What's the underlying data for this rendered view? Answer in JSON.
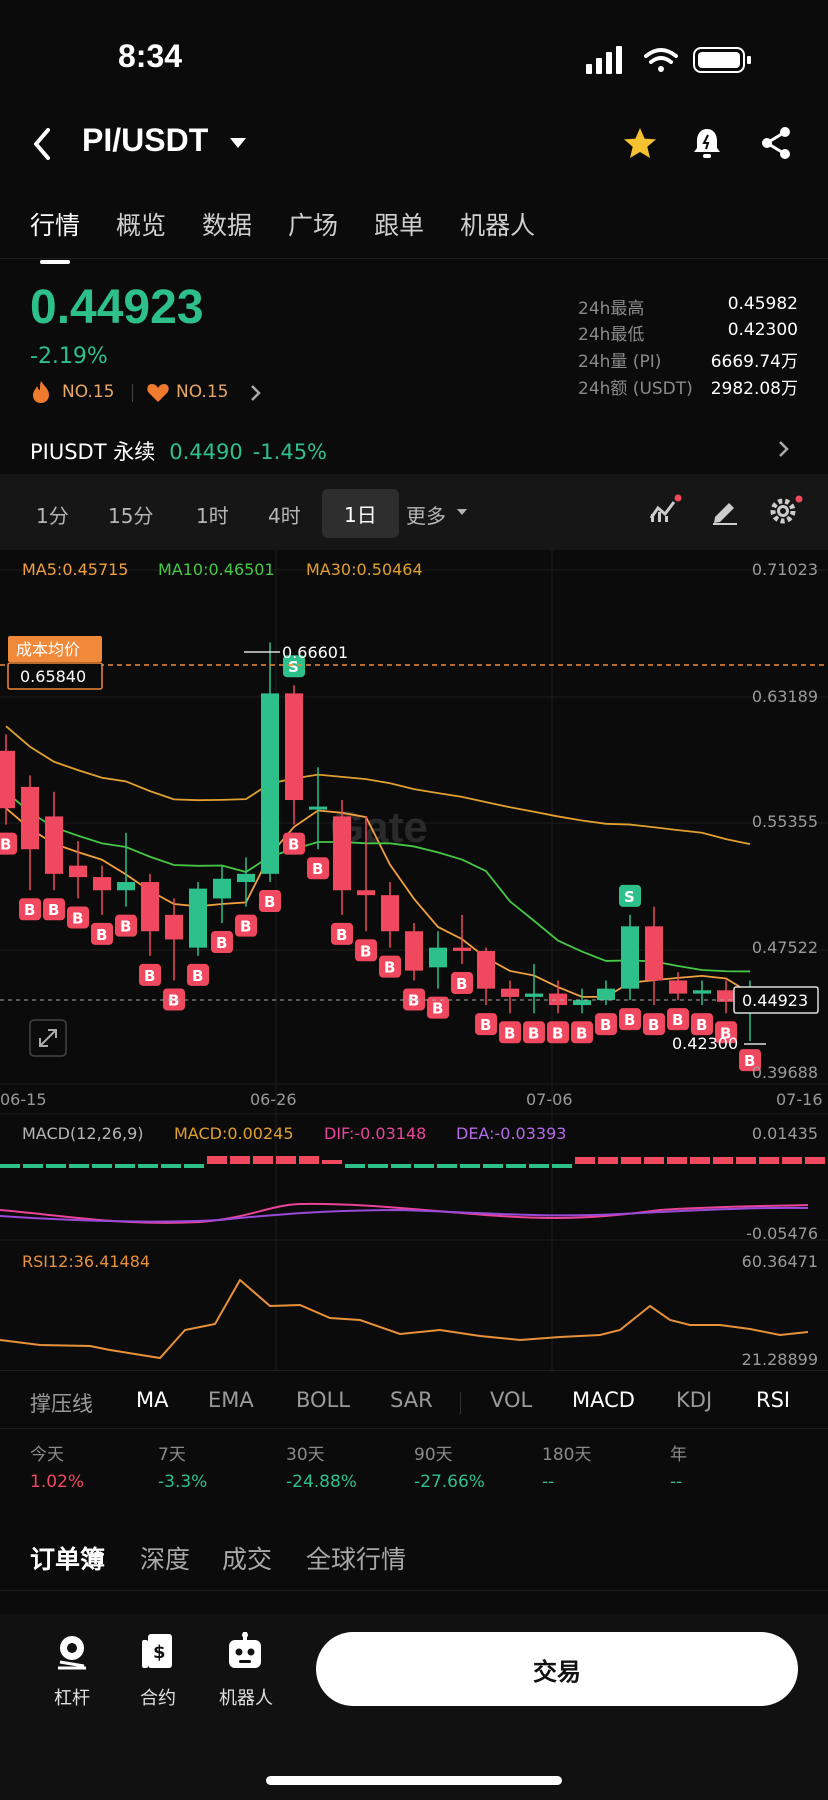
{
  "status": {
    "time": "8:34"
  },
  "header": {
    "pair": "PI/USDT"
  },
  "tabs": [
    "行情",
    "概览",
    "数据",
    "广场",
    "跟单",
    "机器人"
  ],
  "price": {
    "last": "0.44923",
    "change": "-2.19%",
    "rank1": "NO.15",
    "rank2": "NO.15"
  },
  "stats": [
    {
      "label": "24h最高",
      "value": "0.45982"
    },
    {
      "label": "24h最低",
      "value": "0.42300"
    },
    {
      "label": "24h量 (PI)",
      "value": "6669.74万"
    },
    {
      "label": "24h额 (USDT)",
      "value": "2982.08万"
    }
  ],
  "perp": {
    "name": "PIUSDT 永续",
    "price": "0.4490",
    "change": "-1.45%"
  },
  "intervals": [
    "1分",
    "15分",
    "1时",
    "4时",
    "1日",
    "更多"
  ],
  "chart": {
    "ma5": "MA5:0.45715",
    "ma10": "MA10:0.46501",
    "ma30": "MA30:0.50464",
    "cost_label": "成本均价",
    "cost_value": "0.65840",
    "high_marker": "0.66601",
    "low_marker": "0.42300",
    "last_marker": "0.44923",
    "watermark": "Gate",
    "yticks": [
      "0.71023",
      "0.63189",
      "0.55355",
      "0.47522",
      "0.39688"
    ],
    "xticks": [
      "06-15",
      "06-26",
      "07-06",
      "07-16"
    ],
    "macd_title": "MACD(12,26,9)",
    "macd_val": "MACD:0.00245",
    "dif_val": "DIF:-0.03148",
    "dea_val": "DEA:-0.03393",
    "macd_top": "0.01435",
    "macd_bottom": "-0.05476",
    "rsi_title": "RSI12:36.41484",
    "rsi_top": "60.36471",
    "rsi_bottom": "21.28899",
    "colors": {
      "up": "#2ec08b",
      "down": "#f0495f",
      "ma5": "#f0a040",
      "ma10": "#46c846",
      "ma30": "#e0a030",
      "dif": "#e8449a",
      "dea": "#9a4ad8",
      "rsi": "#e8913a"
    }
  },
  "chart_data": {
    "type": "candlestick",
    "yticks": [
      0.71023,
      0.63189,
      0.55355,
      0.47522,
      0.39688
    ],
    "ylim": [
      0.39688,
      0.71023
    ],
    "candles": [
      {
        "o": 0.6,
        "c": 0.565,
        "h": 0.61,
        "l": 0.555
      },
      {
        "o": 0.578,
        "c": 0.54,
        "h": 0.585,
        "l": 0.515
      },
      {
        "o": 0.56,
        "c": 0.525,
        "h": 0.575,
        "l": 0.515
      },
      {
        "o": 0.53,
        "c": 0.523,
        "h": 0.545,
        "l": 0.51
      },
      {
        "o": 0.523,
        "c": 0.515,
        "h": 0.53,
        "l": 0.5
      },
      {
        "o": 0.515,
        "c": 0.52,
        "h": 0.55,
        "l": 0.505
      },
      {
        "o": 0.52,
        "c": 0.49,
        "h": 0.525,
        "l": 0.475
      },
      {
        "o": 0.5,
        "c": 0.485,
        "h": 0.51,
        "l": 0.46
      },
      {
        "o": 0.48,
        "c": 0.516,
        "h": 0.52,
        "l": 0.475
      },
      {
        "o": 0.51,
        "c": 0.522,
        "h": 0.53,
        "l": 0.495
      },
      {
        "o": 0.52,
        "c": 0.525,
        "h": 0.535,
        "l": 0.505
      },
      {
        "o": 0.525,
        "c": 0.635,
        "h": 0.666,
        "l": 0.52
      },
      {
        "o": 0.635,
        "c": 0.57,
        "h": 0.64,
        "l": 0.555
      },
      {
        "o": 0.566,
        "c": 0.566,
        "h": 0.59,
        "l": 0.54
      },
      {
        "o": 0.56,
        "c": 0.515,
        "h": 0.57,
        "l": 0.5
      },
      {
        "o": 0.515,
        "c": 0.512,
        "h": 0.56,
        "l": 0.49
      },
      {
        "o": 0.512,
        "c": 0.49,
        "h": 0.52,
        "l": 0.48
      },
      {
        "o": 0.49,
        "c": 0.466,
        "h": 0.495,
        "l": 0.46
      },
      {
        "o": 0.468,
        "c": 0.48,
        "h": 0.49,
        "l": 0.455
      },
      {
        "o": 0.48,
        "c": 0.478,
        "h": 0.5,
        "l": 0.47
      },
      {
        "o": 0.478,
        "c": 0.455,
        "h": 0.48,
        "l": 0.445
      },
      {
        "o": 0.455,
        "c": 0.45,
        "h": 0.46,
        "l": 0.44
      },
      {
        "o": 0.45,
        "c": 0.452,
        "h": 0.47,
        "l": 0.44
      },
      {
        "o": 0.452,
        "c": 0.445,
        "h": 0.46,
        "l": 0.44
      },
      {
        "o": 0.445,
        "c": 0.448,
        "h": 0.455,
        "l": 0.44
      },
      {
        "o": 0.448,
        "c": 0.455,
        "h": 0.46,
        "l": 0.445
      },
      {
        "o": 0.455,
        "c": 0.493,
        "h": 0.5,
        "l": 0.448
      },
      {
        "o": 0.493,
        "c": 0.46,
        "h": 0.505,
        "l": 0.445
      },
      {
        "o": 0.46,
        "c": 0.452,
        "h": 0.465,
        "l": 0.448
      },
      {
        "o": 0.452,
        "c": 0.454,
        "h": 0.46,
        "l": 0.445
      },
      {
        "o": 0.454,
        "c": 0.447,
        "h": 0.46,
        "l": 0.44
      },
      {
        "o": 0.447,
        "c": 0.449,
        "h": 0.46,
        "l": 0.423
      }
    ]
  },
  "indicators": [
    "撑压线",
    "MA",
    "EMA",
    "BOLL",
    "SAR",
    "VOL",
    "MACD",
    "KDJ",
    "RSI"
  ],
  "performance": [
    {
      "label": "今天",
      "value": "1.02%"
    },
    {
      "label": "7天",
      "value": "-3.3%"
    },
    {
      "label": "30天",
      "value": "-24.88%"
    },
    {
      "label": "90天",
      "value": "-27.66%"
    },
    {
      "label": "180天",
      "value": "--"
    },
    {
      "label": "年",
      "value": "--"
    }
  ],
  "orderbook_tabs": [
    "订单簿",
    "深度",
    "成交",
    "全球行情"
  ],
  "bottom": {
    "items": [
      "杠杆",
      "合约",
      "机器人"
    ],
    "trade": "交易"
  }
}
